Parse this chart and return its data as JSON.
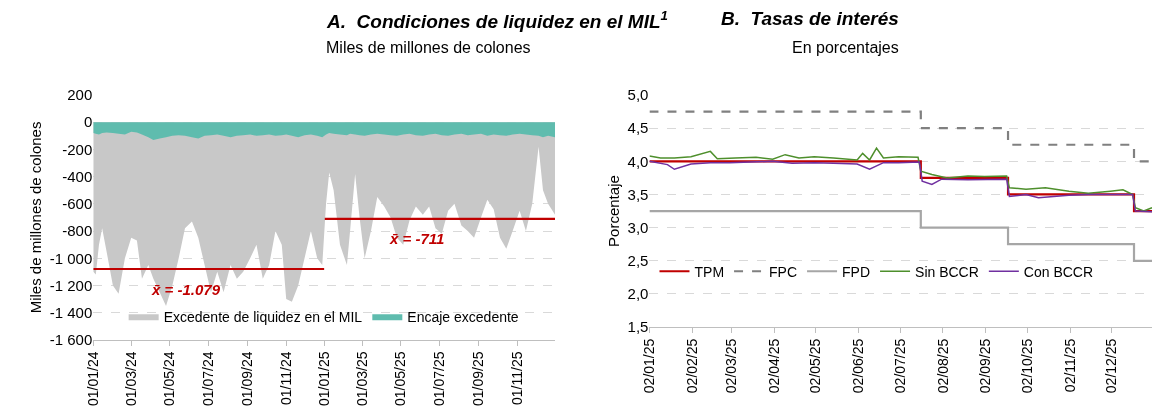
{
  "chart_data": [
    {
      "type": "area",
      "title": "A.  Condiciones de liquidez en el MIL$^{1}$",
      "subtitle": "Miles de millones de colones",
      "ylabel": "Miles de millones de colones",
      "x": [
        "2024-01-01",
        "2024-01-05",
        "2024-01-10",
        "2024-01-15",
        "2024-01-22",
        "2024-02-01",
        "2024-02-10",
        "2024-02-20",
        "2024-03-01",
        "2024-03-10",
        "2024-03-18",
        "2024-03-28",
        "2024-04-05",
        "2024-04-15",
        "2024-04-25",
        "2024-05-05",
        "2024-05-15",
        "2024-05-25",
        "2024-06-05",
        "2024-06-15",
        "2024-06-25",
        "2024-07-05",
        "2024-07-15",
        "2024-07-25",
        "2024-08-05",
        "2024-08-15",
        "2024-08-25",
        "2024-09-05",
        "2024-09-15",
        "2024-09-25",
        "2024-10-05",
        "2024-10-15",
        "2024-10-25",
        "2024-11-01",
        "2024-11-10",
        "2024-11-20",
        "2024-11-30",
        "2024-12-10",
        "2024-12-20",
        "2024-12-28",
        "2025-01-03",
        "2025-01-08",
        "2025-01-15",
        "2025-01-25",
        "2025-02-05",
        "2025-02-10",
        "2025-02-18",
        "2025-02-25",
        "2025-03-05",
        "2025-03-15",
        "2025-03-25",
        "2025-04-05",
        "2025-04-15",
        "2025-04-25",
        "2025-05-05",
        "2025-05-15",
        "2025-05-25",
        "2025-06-05",
        "2025-06-15",
        "2025-06-25",
        "2025-07-05",
        "2025-07-15",
        "2025-07-25",
        "2025-08-05",
        "2025-08-15",
        "2025-08-25",
        "2025-09-05",
        "2025-09-15",
        "2025-09-25",
        "2025-10-05",
        "2025-10-15",
        "2025-10-25",
        "2025-11-05",
        "2025-11-15",
        "2025-11-25",
        "2025-12-05",
        "2025-12-12",
        "2025-12-20",
        "2025-12-31"
      ],
      "series": [
        {
          "name": "Excedente de liquidez en el MIL",
          "color": "#c8c8c8",
          "values": [
            -1100,
            -1120,
            -900,
            -780,
            -950,
            -1200,
            -1260,
            -1000,
            -850,
            -870,
            -1150,
            -1050,
            -1150,
            -1250,
            -1350,
            -1200,
            -1000,
            -780,
            -730,
            -850,
            -1050,
            -1250,
            -1100,
            -1250,
            -1050,
            -1150,
            -1100,
            -1000,
            -900,
            -1150,
            -1050,
            -800,
            -900,
            -1300,
            -1320,
            -1200,
            -1000,
            -800,
            -1000,
            -1050,
            -600,
            -370,
            -500,
            -900,
            -1050,
            -800,
            -380,
            -700,
            -1000,
            -800,
            -550,
            -620,
            -700,
            -850,
            -900,
            -720,
            -620,
            -680,
            -620,
            -780,
            -820,
            -650,
            -600,
            -760,
            -800,
            -850,
            -700,
            -570,
            -640,
            -850,
            -930,
            -800,
            -650,
            -800,
            -600,
            -180,
            -500,
            -600,
            -680
          ]
        },
        {
          "name": "Encaje excedente",
          "color": "#5fbcae",
          "values": [
            -80,
            -85,
            -90,
            -80,
            -75,
            -80,
            -85,
            -90,
            -70,
            -75,
            -90,
            -110,
            -130,
            -120,
            -110,
            -100,
            -95,
            -100,
            -110,
            -120,
            -100,
            -95,
            -90,
            -100,
            -110,
            -100,
            -95,
            -90,
            -100,
            -95,
            -90,
            -100,
            -95,
            -90,
            -100,
            -110,
            -95,
            -90,
            -100,
            -110,
            -90,
            -80,
            -85,
            -90,
            -95,
            -85,
            -90,
            -95,
            -100,
            -90,
            -85,
            -90,
            -95,
            -100,
            -90,
            -85,
            -95,
            -100,
            -90,
            -85,
            -95,
            -100,
            -90,
            -85,
            -95,
            -90,
            -85,
            -100,
            -90,
            -95,
            -100,
            -90,
            -85,
            -90,
            -95,
            -100,
            -110,
            -100,
            -110
          ]
        },
        {
          "type": "line",
          "color": "#c00000",
          "x": [
            "2024-01-01",
            "2024-12-31"
          ],
          "values": [
            -1079,
            -1079
          ]
        },
        {
          "type": "line",
          "color": "#c00000",
          "x": [
            "2025-01-01",
            "2025-12-31"
          ],
          "values": [
            -711,
            -711
          ]
        }
      ],
      "annotations": [
        "x̄ = -1.079",
        "x̄ = -711"
      ],
      "xlim": [
        "2024-01-01",
        "2025-12-31"
      ],
      "xticks": [
        {
          "value": "2024-01-01",
          "label": "01/01/24"
        },
        {
          "value": "2024-03-01",
          "label": "01/03/24"
        },
        {
          "value": "2024-05-01",
          "label": "01/05/24"
        },
        {
          "value": "2024-07-01",
          "label": "01/07/24"
        },
        {
          "value": "2024-09-01",
          "label": "01/09/24"
        },
        {
          "value": "2024-11-01",
          "label": "01/11/24"
        },
        {
          "value": "2025-01-01",
          "label": "01/01/25"
        },
        {
          "value": "2025-03-01",
          "label": "01/03/25"
        },
        {
          "value": "2025-05-01",
          "label": "01/05/25"
        },
        {
          "value": "2025-07-01",
          "label": "01/07/25"
        },
        {
          "value": "2025-09-01",
          "label": "01/09/25"
        },
        {
          "value": "2025-11-01",
          "label": "01/11/25"
        }
      ],
      "ylim": [
        -1600,
        200
      ],
      "yticks": [
        {
          "value": -1600,
          "label": "-1 600"
        },
        {
          "value": -1400,
          "label": "-1 400"
        },
        {
          "value": -1200,
          "label": "-1 200"
        },
        {
          "value": -1000,
          "label": "-1 000"
        },
        -800,
        -600,
        -400,
        -200,
        0,
        200
      ],
      "grid": "y",
      "legend": "bottom"
    },
    {
      "type": "line",
      "title": "B.  Tasas de interés",
      "subtitle": "En porcentajes",
      "ylabel": "Porcentaje",
      "x": [
        "2025-01-02",
        "2025-07-17",
        "2025-09-18",
        "2025-12-18",
        "2025-12-31"
      ],
      "series": [
        {
          "name": "TPM",
          "type": "step",
          "color": "#c00000",
          "values": [
            4.0,
            3.75,
            3.5,
            3.25,
            3.25
          ]
        },
        {
          "name": "FPC",
          "type": "step",
          "color": "#808080",
          "line_style": "dashed",
          "values": [
            4.75,
            4.5,
            4.25,
            4.0,
            4.0
          ]
        },
        {
          "name": "FPD",
          "type": "step",
          "color": "#a6a6a6",
          "values": [
            3.25,
            3.0,
            2.75,
            2.5,
            2.5
          ]
        },
        {
          "name": "Sin BCCR",
          "color": "#4e8f2c",
          "x": [
            "2025-01-02",
            "2025-01-10",
            "2025-01-20",
            "2025-02-01",
            "2025-02-15",
            "2025-02-20",
            "2025-03-05",
            "2025-03-20",
            "2025-04-01",
            "2025-04-10",
            "2025-04-20",
            "2025-05-01",
            "2025-05-15",
            "2025-06-01",
            "2025-06-05",
            "2025-06-10",
            "2025-06-15",
            "2025-06-20",
            "2025-07-01",
            "2025-07-15",
            "2025-07-17",
            "2025-07-25",
            "2025-08-05",
            "2025-08-20",
            "2025-09-01",
            "2025-09-17",
            "2025-09-19",
            "2025-10-01",
            "2025-10-15",
            "2025-11-01",
            "2025-11-15",
            "2025-12-01",
            "2025-12-10",
            "2025-12-17",
            "2025-12-19",
            "2025-12-25",
            "2025-12-31"
          ],
          "values": [
            4.08,
            4.05,
            4.05,
            4.07,
            4.15,
            4.04,
            4.05,
            4.06,
            4.03,
            4.1,
            4.05,
            4.07,
            4.05,
            4.02,
            4.12,
            4.02,
            4.2,
            4.05,
            4.07,
            4.06,
            3.85,
            3.8,
            3.75,
            3.78,
            3.77,
            3.78,
            3.6,
            3.58,
            3.6,
            3.55,
            3.52,
            3.55,
            3.57,
            3.5,
            3.3,
            3.25,
            3.3
          ]
        },
        {
          "name": "Con BCCR",
          "color": "#7030a0",
          "x": [
            "2025-01-02",
            "2025-01-15",
            "2025-01-20",
            "2025-02-01",
            "2025-02-15",
            "2025-03-01",
            "2025-04-01",
            "2025-04-15",
            "2025-05-01",
            "2025-05-15",
            "2025-06-01",
            "2025-06-10",
            "2025-06-20",
            "2025-07-01",
            "2025-07-16",
            "2025-07-18",
            "2025-07-25",
            "2025-08-01",
            "2025-08-20",
            "2025-09-17",
            "2025-09-19",
            "2025-10-01",
            "2025-10-10",
            "2025-11-01",
            "2025-11-15",
            "2025-12-01",
            "2025-12-17",
            "2025-12-19",
            "2025-12-31"
          ],
          "values": [
            4.0,
            3.95,
            3.88,
            3.96,
            3.98,
            3.98,
            4.0,
            3.97,
            3.98,
            3.97,
            3.96,
            3.88,
            3.98,
            3.98,
            3.99,
            3.7,
            3.65,
            3.73,
            3.72,
            3.73,
            3.47,
            3.5,
            3.45,
            3.49,
            3.5,
            3.5,
            3.5,
            3.25,
            3.24
          ]
        }
      ],
      "xlim": [
        "2025-01-02",
        "2025-12-31"
      ],
      "xticks": [
        {
          "value": "2025-01-02",
          "label": "02/01/25"
        },
        {
          "value": "2025-02-02",
          "label": "02/02/25"
        },
        {
          "value": "2025-03-02",
          "label": "02/03/25"
        },
        {
          "value": "2025-04-02",
          "label": "02/04/25"
        },
        {
          "value": "2025-05-02",
          "label": "02/05/25"
        },
        {
          "value": "2025-06-02",
          "label": "02/06/25"
        },
        {
          "value": "2025-07-02",
          "label": "02/07/25"
        },
        {
          "value": "2025-08-02",
          "label": "02/08/25"
        },
        {
          "value": "2025-09-02",
          "label": "02/09/25"
        },
        {
          "value": "2025-10-02",
          "label": "02/10/25"
        },
        {
          "value": "2025-11-02",
          "label": "02/11/25"
        },
        {
          "value": "2025-12-02",
          "label": "02/12/25"
        }
      ],
      "ylim": [
        1.5,
        5.0
      ],
      "yticks": [
        {
          "value": 1.5,
          "label": "1,5"
        },
        {
          "value": 2.0,
          "label": "2,0"
        },
        {
          "value": 2.5,
          "label": "2,5"
        },
        {
          "value": 3.0,
          "label": "3,0"
        },
        {
          "value": 3.5,
          "label": "3,5"
        },
        {
          "value": 4.0,
          "label": "4,0"
        },
        {
          "value": 4.5,
          "label": "4,5"
        },
        {
          "value": 5.0,
          "label": "5,0"
        }
      ],
      "grid": "y",
      "legend": "bottom left"
    }
  ]
}
